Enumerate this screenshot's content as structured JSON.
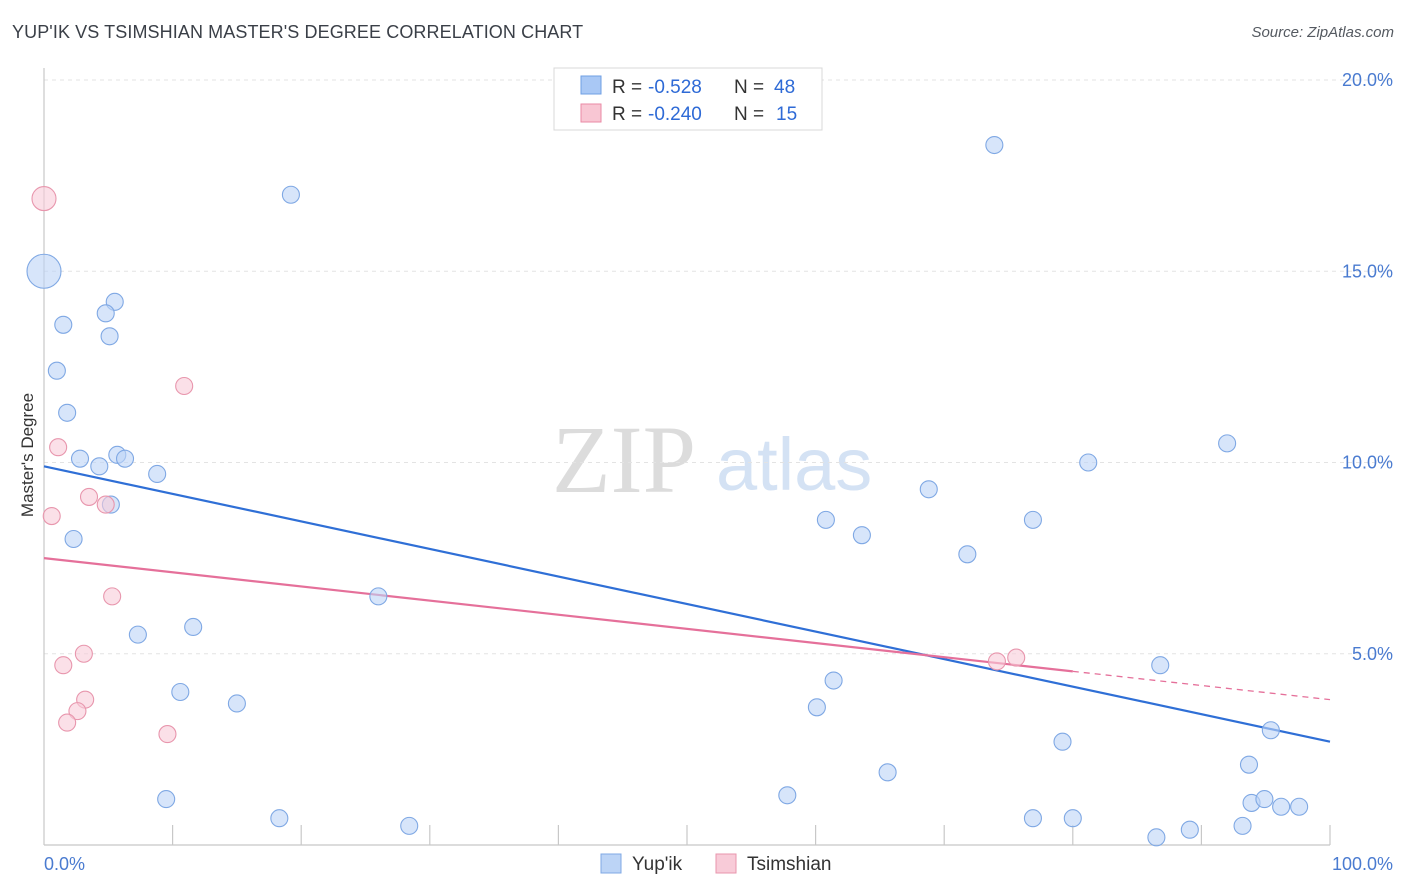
{
  "header": {
    "title": "YUP'IK VS TSIMSHIAN MASTER'S DEGREE CORRELATION CHART",
    "source": "Source: ZipAtlas.com"
  },
  "watermark": {
    "zip": "ZIP",
    "atlas": "atlas"
  },
  "legend_top": [
    {
      "r_label": "R =",
      "r_value": "-0.528",
      "n_label": "N =",
      "n_value": "48",
      "color": "#a9c8f5",
      "stroke": "#6f9fe3",
      "value_color": "#2e6ad6"
    },
    {
      "r_label": "R =",
      "r_value": "-0.240",
      "n_label": "N =",
      "n_value": "15",
      "color": "#f8c6d3",
      "stroke": "#ea8aa5",
      "value_color": "#2e6ad6"
    }
  ],
  "legend_bottom": [
    {
      "label": "Yup'ik",
      "color": "#bcd4f6",
      "stroke": "#7fa8e4"
    },
    {
      "label": "Tsimshian",
      "color": "#f8cbd8",
      "stroke": "#e896ad"
    }
  ],
  "chart_data": {
    "type": "scatter",
    "title": "YUP'IK VS TSIMSHIAN MASTER'S DEGREE CORRELATION CHART",
    "xlabel": "",
    "ylabel": "Master's Degree",
    "xlim": [
      0,
      100
    ],
    "ylim": [
      0,
      20
    ],
    "x_tick_labels": {
      "left": "0.0%",
      "right": "100.0%"
    },
    "y_ticks": [
      {
        "value": 5,
        "label": "5.0%"
      },
      {
        "value": 10,
        "label": "10.0%"
      },
      {
        "value": 15,
        "label": "15.0%"
      },
      {
        "value": 20,
        "label": "20.0%"
      }
    ],
    "x_minor_ticks": [
      10,
      20,
      30,
      40,
      50,
      60,
      70,
      80,
      90,
      100
    ],
    "grid": true,
    "series": [
      {
        "name": "Yup'ik",
        "color": "#bcd4f6",
        "stroke": "#7fa8e4",
        "trend_color": "#2f6fd6",
        "trend": {
          "x0": 0,
          "y0": 9.9,
          "x1": 100,
          "y1": 2.7,
          "dash_from": null
        },
        "points": [
          {
            "x": 0.0,
            "y": 15.0,
            "big": true
          },
          {
            "x": 1.5,
            "y": 13.6
          },
          {
            "x": 5.5,
            "y": 14.2
          },
          {
            "x": 4.8,
            "y": 13.9
          },
          {
            "x": 1.0,
            "y": 12.4
          },
          {
            "x": 5.1,
            "y": 13.3
          },
          {
            "x": 1.8,
            "y": 11.3
          },
          {
            "x": 2.8,
            "y": 10.1
          },
          {
            "x": 4.3,
            "y": 9.9
          },
          {
            "x": 5.7,
            "y": 10.2
          },
          {
            "x": 6.3,
            "y": 10.1
          },
          {
            "x": 8.8,
            "y": 9.7
          },
          {
            "x": 5.2,
            "y": 8.9
          },
          {
            "x": 2.3,
            "y": 8.0
          },
          {
            "x": 19.2,
            "y": 17.0
          },
          {
            "x": 26.0,
            "y": 6.5
          },
          {
            "x": 7.3,
            "y": 5.5
          },
          {
            "x": 11.6,
            "y": 5.7
          },
          {
            "x": 10.6,
            "y": 4.0
          },
          {
            "x": 15.0,
            "y": 3.7
          },
          {
            "x": 9.5,
            "y": 1.2
          },
          {
            "x": 18.3,
            "y": 0.7
          },
          {
            "x": 28.4,
            "y": 0.5
          },
          {
            "x": 73.9,
            "y": 18.3
          },
          {
            "x": 60.8,
            "y": 8.5
          },
          {
            "x": 63.6,
            "y": 8.1
          },
          {
            "x": 68.8,
            "y": 9.3
          },
          {
            "x": 71.8,
            "y": 7.6
          },
          {
            "x": 76.9,
            "y": 8.5
          },
          {
            "x": 81.2,
            "y": 10.0
          },
          {
            "x": 92.0,
            "y": 10.5
          },
          {
            "x": 61.4,
            "y": 4.3
          },
          {
            "x": 60.1,
            "y": 3.6
          },
          {
            "x": 57.8,
            "y": 1.3
          },
          {
            "x": 65.6,
            "y": 1.9
          },
          {
            "x": 76.9,
            "y": 0.7
          },
          {
            "x": 79.2,
            "y": 2.7
          },
          {
            "x": 80.0,
            "y": 0.7
          },
          {
            "x": 86.8,
            "y": 4.7
          },
          {
            "x": 86.5,
            "y": 0.2
          },
          {
            "x": 89.1,
            "y": 0.4
          },
          {
            "x": 93.7,
            "y": 2.1
          },
          {
            "x": 93.9,
            "y": 1.1
          },
          {
            "x": 94.9,
            "y": 1.2
          },
          {
            "x": 96.2,
            "y": 1.0
          },
          {
            "x": 97.6,
            "y": 1.0
          },
          {
            "x": 95.4,
            "y": 3.0
          },
          {
            "x": 93.2,
            "y": 0.5
          }
        ]
      },
      {
        "name": "Tsimshian",
        "color": "#f8cbd8",
        "stroke": "#e896ad",
        "trend_color": "#e5709a",
        "trend": {
          "x0": 0,
          "y0": 7.5,
          "x1": 100,
          "y1": 3.8,
          "dash_from": 80
        },
        "points": [
          {
            "x": 0.0,
            "y": 16.9,
            "big2": true
          },
          {
            "x": 10.9,
            "y": 12.0
          },
          {
            "x": 1.1,
            "y": 10.4
          },
          {
            "x": 3.5,
            "y": 9.1
          },
          {
            "x": 4.8,
            "y": 8.9
          },
          {
            "x": 0.6,
            "y": 8.6
          },
          {
            "x": 5.3,
            "y": 6.5
          },
          {
            "x": 3.1,
            "y": 5.0
          },
          {
            "x": 1.5,
            "y": 4.7
          },
          {
            "x": 3.2,
            "y": 3.8
          },
          {
            "x": 2.6,
            "y": 3.5
          },
          {
            "x": 1.8,
            "y": 3.2
          },
          {
            "x": 9.6,
            "y": 2.9
          },
          {
            "x": 74.1,
            "y": 4.8
          },
          {
            "x": 75.6,
            "y": 4.9
          }
        ]
      }
    ]
  }
}
